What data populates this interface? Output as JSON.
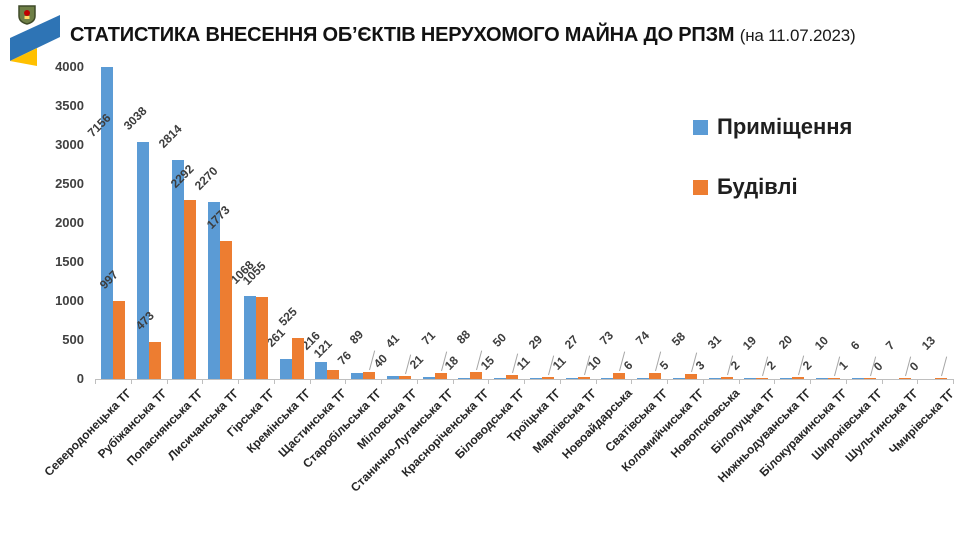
{
  "header": {
    "title": "СТАТИСТИКА ВНЕСЕННЯ ОБ’ЄКТІВ НЕРУХОМОГО МАЙНА ДО РПЗМ",
    "date_note": "(на 11.07.2023)",
    "logo": "luhansk-region-emblem-with-ukraine-flag-swoosh"
  },
  "chart_data": {
    "type": "bar",
    "title": "СТАТИСТИКА ВНЕСЕННЯ ОБ’ЄКТІВ НЕРУХОМОГО МАЙНА ДО РПЗМ (на 11.07.2023)",
    "categories": [
      "Северодонецька ТГ",
      "Рубіжанська ТГ",
      "Попаснянська ТГ",
      "Лисичанська ТГ",
      "Гірська ТГ",
      "Кремінська ТГ",
      "Щастинська ТГ",
      "Старобільська ТГ",
      "Міловська ТГ",
      "Станично-Луганська ТГ",
      "Красноріченська ТГ",
      "Біловодська ТГ",
      "Троїцька ТГ",
      "Марківська ТГ",
      "Новоайдарська",
      "Сватівська ТГ",
      "Коломийчиська ТГ",
      "Новопсковська",
      "Білолуцька ТГ",
      "Нижньодуванська ТГ",
      "Білокуракинська ТГ",
      "Широківська ТГ",
      "Шульгинська ТГ",
      "Чмирівська ТГ"
    ],
    "series": [
      {
        "name": "Приміщення",
        "color": "#5B9BD5",
        "values": [
          7156,
          3038,
          2814,
          2270,
          1068,
          261,
          216,
          76,
          40,
          21,
          18,
          15,
          11,
          11,
          10,
          6,
          5,
          3,
          2,
          2,
          2,
          1,
          0,
          0
        ]
      },
      {
        "name": "Будівлі",
        "color": "#ED7D31",
        "values": [
          997,
          473,
          2292,
          1773,
          1055,
          525,
          121,
          89,
          41,
          71,
          88,
          50,
          29,
          27,
          73,
          74,
          58,
          31,
          19,
          20,
          10,
          6,
          7,
          13
        ]
      }
    ],
    "xlabel": "",
    "ylabel": "",
    "ylim": [
      0,
      4000
    ],
    "ytick_step": 500,
    "grid": false,
    "legend_position": "inside-top-right",
    "data_labels": true,
    "data_label_rotation": -45,
    "category_label_rotation": -45,
    "note": "first blue bar (7156) is clipped at the 4000 axis maximum"
  },
  "colors": {
    "series_blue": "#5B9BD5",
    "series_orange": "#ED7D31",
    "axis_line": "#BFBFBF",
    "label_text": "#3D3D3D",
    "background": "#FFFFFF"
  }
}
